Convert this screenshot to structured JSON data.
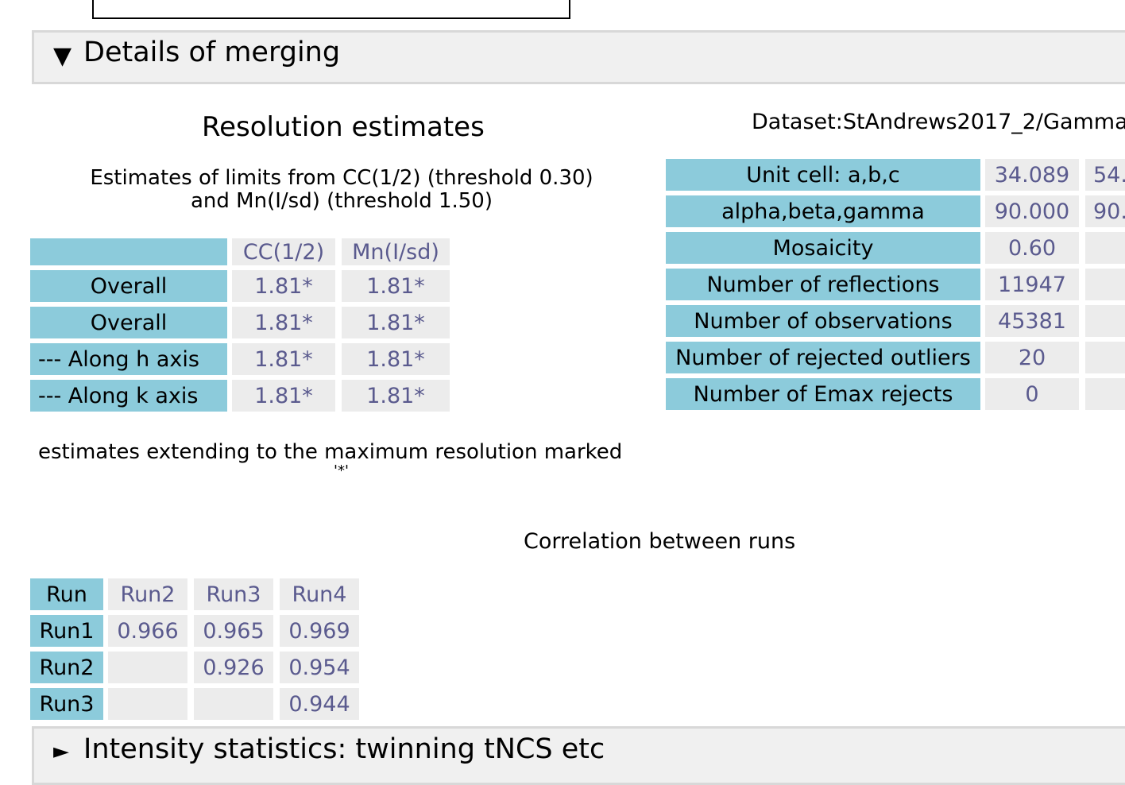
{
  "section_merging": {
    "toggle": "▼",
    "title": "Details of merging"
  },
  "resolution": {
    "heading": "Resolution estimates",
    "subtitle_line1": "Estimates of limits from CC(1/2) (threshold 0.30)",
    "subtitle_line2": "and Mn(I/sd) (threshold 1.50)",
    "columns": [
      "",
      "CC(1/2)",
      "Mn(I/sd)"
    ],
    "rows": [
      {
        "label": "Overall",
        "cc": "1.81*",
        "mn": "1.81*"
      },
      {
        "label": "Overall",
        "cc": "1.81*",
        "mn": "1.81*"
      },
      {
        "label": "--- Along h axis",
        "cc": "1.81*",
        "mn": "1.81*"
      },
      {
        "label": "--- Along k axis",
        "cc": "1.81*",
        "mn": "1.81*"
      }
    ],
    "note": "estimates extending to the maximum resolution marked",
    "note_mark": "'*'"
  },
  "dataset": {
    "label": "Dataset:StAndrews2017_2/Gamma",
    "rows": [
      {
        "label": "Unit cell: a,b,c",
        "v1": "34.089",
        "v2": "54."
      },
      {
        "label": "alpha,beta,gamma",
        "v1": "90.000",
        "v2": "90."
      },
      {
        "label": "Mosaicity",
        "v1": "0.60",
        "v2": ""
      },
      {
        "label": "Number of reflections",
        "v1": "11947",
        "v2": ""
      },
      {
        "label": "Number of observations",
        "v1": "45381",
        "v2": ""
      },
      {
        "label": "Number of rejected outliers",
        "v1": "20",
        "v2": ""
      },
      {
        "label": "Number of Emax rejects",
        "v1": "0",
        "v2": ""
      }
    ]
  },
  "correlation": {
    "title": "Correlation between runs",
    "header": [
      "Run",
      "Run2",
      "Run3",
      "Run4"
    ],
    "rows": [
      {
        "label": "Run1",
        "values": [
          "0.966",
          "0.965",
          "0.969"
        ]
      },
      {
        "label": "Run2",
        "values": [
          "",
          "0.926",
          "0.954"
        ]
      },
      {
        "label": "Run3",
        "values": [
          "",
          "",
          "0.944"
        ]
      }
    ]
  },
  "section_intensity": {
    "toggle": "►",
    "title": "Intensity statistics: twinning tNCS etc"
  }
}
